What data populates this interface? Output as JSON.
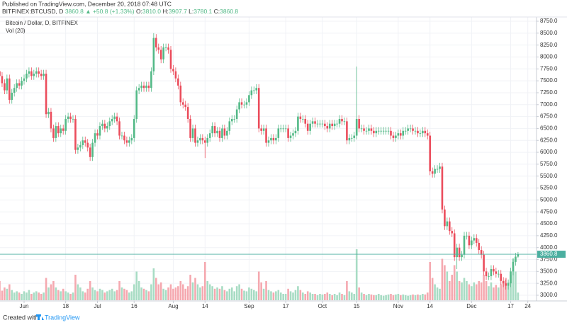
{
  "header": {
    "published": "Published on TradingView.com, December 20, 2018 07:48 UTC",
    "symbol": "BITFINEX:BTCUSD, D",
    "last": "3860.8",
    "change": "▲ +50.8 (+1.33%)",
    "ohlc": [
      {
        "label": "O:",
        "value": "3810.0"
      },
      {
        "label": "H:",
        "value": "3907.7"
      },
      {
        "label": "L:",
        "value": "3780.1"
      },
      {
        "label": "C:",
        "value": "3860.8"
      }
    ]
  },
  "chart_data": {
    "type": "candlestick",
    "legend": "Bitcoin / Dollar, D, BITFINEX",
    "volume_label": "Vol (20)",
    "up_color": "#53b987",
    "down_color": "#eb4d5c",
    "volume_up_color": "#a8dcc4",
    "volume_down_color": "#f5a9b0",
    "last_price_color": "#4bafa0",
    "grid": true,
    "ylim": [
      3000,
      8750
    ],
    "yticks": [
      {
        "value": 3000,
        "label": "3000.0"
      },
      {
        "value": 3250,
        "label": "3250.0"
      },
      {
        "value": 3500,
        "label": "3500.0"
      },
      {
        "value": 3750,
        "label": "3750.0"
      },
      {
        "value": 4000,
        "label": "4000.0"
      },
      {
        "value": 4250,
        "label": "4250.0"
      },
      {
        "value": 4500,
        "label": "4500.0"
      },
      {
        "value": 4750,
        "label": "4750.0"
      },
      {
        "value": 5000,
        "label": "5000.0"
      },
      {
        "value": 5250,
        "label": "5250.0"
      },
      {
        "value": 5500,
        "label": "5500.0"
      },
      {
        "value": 5750,
        "label": "5750.0"
      },
      {
        "value": 6000,
        "label": "6000.0"
      },
      {
        "value": 6250,
        "label": "6250.0"
      },
      {
        "value": 6500,
        "label": "6500.0"
      },
      {
        "value": 6750,
        "label": "6750.0"
      },
      {
        "value": 7000,
        "label": "7000.0"
      },
      {
        "value": 7250,
        "label": "7250.0"
      },
      {
        "value": 7500,
        "label": "7500.0"
      },
      {
        "value": 7750,
        "label": "7750.0"
      },
      {
        "value": 8000,
        "label": "8000.0"
      },
      {
        "value": 8250,
        "label": "8250.0"
      },
      {
        "value": 8500,
        "label": "8500.0"
      },
      {
        "value": 8750,
        "label": "8750.0"
      }
    ],
    "xticks": [
      {
        "value": 10,
        "label": "Jun"
      },
      {
        "value": 27,
        "label": "18"
      },
      {
        "value": 40,
        "label": "Jul"
      },
      {
        "value": 55,
        "label": "16"
      },
      {
        "value": 71,
        "label": "Aug"
      },
      {
        "value": 84,
        "label": "14"
      },
      {
        "value": 102,
        "label": "Sep"
      },
      {
        "value": 117,
        "label": "17"
      },
      {
        "value": 132,
        "label": "Oct"
      },
      {
        "value": 146,
        "label": "15"
      },
      {
        "value": 163,
        "label": "Nov"
      },
      {
        "value": 176,
        "label": "14"
      },
      {
        "value": 193,
        "label": "Dec"
      },
      {
        "value": 209,
        "label": "17"
      },
      {
        "value": 216,
        "label": "24"
      }
    ],
    "volume_lim": [
      0,
      100
    ],
    "open": [
      7700,
      7600,
      7450,
      7300,
      7550,
      7100,
      7250,
      7350,
      7450,
      7400,
      7500,
      7550,
      7650,
      7700,
      7600,
      7650,
      7700,
      7650,
      7600,
      7650,
      6800,
      6850,
      6500,
      6300,
      6550,
      6400,
      6500,
      6450,
      6700,
      6750,
      6700,
      6700,
      6050,
      6100,
      6150,
      6250,
      6200,
      6100,
      5900,
      6200,
      6400,
      6350,
      6550,
      6600,
      6500,
      6550,
      6650,
      6700,
      6750,
      6650,
      6350,
      6350,
      6250,
      6200,
      6250,
      6300,
      6700,
      7300,
      7350,
      7400,
      7350,
      7400,
      7350,
      7700,
      8400,
      8200,
      8150,
      7950,
      8200,
      8200,
      8150,
      7750,
      7700,
      7550,
      7400,
      7050,
      7000,
      6950,
      6700,
      6300,
      6500,
      6200,
      6250,
      6300,
      6250,
      6200,
      6300,
      6400,
      6550,
      6400,
      6450,
      6300,
      6500,
      6350,
      6450,
      6650,
      6700,
      6700,
      6900,
      7050,
      7000,
      7000,
      7050,
      7200,
      7300,
      7300,
      7350,
      6500,
      6450,
      6500,
      6200,
      6250,
      6300,
      6250,
      6300,
      6500,
      6500,
      6500,
      6500,
      6300,
      6350,
      6400,
      6450,
      6750,
      6700,
      6700,
      6600,
      6450,
      6600,
      6650,
      6600,
      6600,
      6600,
      6600,
      6550,
      6500,
      6600,
      6550,
      6600,
      6600,
      6700,
      6650,
      6650,
      6250,
      6300,
      6300,
      6350,
      6700,
      6500,
      6500,
      6450,
      6450,
      6500,
      6450,
      6400,
      6450,
      6450,
      6450,
      6450,
      6450,
      6450,
      6350,
      6300,
      6350,
      6400,
      6350,
      6450,
      6450,
      6500,
      6500,
      6450,
      6450,
      6400,
      6400,
      6450,
      6400,
      6350,
      5600,
      5550,
      5650,
      5650,
      5700,
      4800,
      4450,
      4550,
      4350,
      4300,
      3800,
      4000,
      3800,
      3850,
      4250,
      4250,
      4050,
      4150,
      4200,
      4100,
      3950,
      3850,
      3500,
      3400,
      3400,
      3550,
      3500,
      3450,
      3450,
      3300,
      3250,
      3200,
      3250,
      3500,
      3700,
      3810
    ],
    "high": [
      7780,
      7680,
      7530,
      7630,
      7630,
      7330,
      7430,
      7530,
      7530,
      7580,
      7630,
      7730,
      7780,
      7780,
      7730,
      7780,
      7780,
      7730,
      7730,
      7730,
      6930,
      6930,
      6580,
      6630,
      6630,
      6580,
      6580,
      6780,
      6830,
      6830,
      6780,
      6780,
      6180,
      6230,
      6330,
      6330,
      6280,
      6180,
      6280,
      6480,
      6480,
      6630,
      6680,
      6680,
      6630,
      6730,
      6780,
      6830,
      6830,
      6730,
      6430,
      6430,
      6330,
      6330,
      6380,
      6780,
      7380,
      7430,
      7480,
      7480,
      7480,
      7480,
      7780,
      8500,
      8480,
      8280,
      8230,
      8280,
      8280,
      8280,
      8230,
      7830,
      7780,
      7630,
      7480,
      7130,
      7080,
      7030,
      6780,
      6580,
      6580,
      6330,
      6380,
      6380,
      6330,
      6380,
      6480,
      6630,
      6630,
      6530,
      6530,
      6580,
      6580,
      6530,
      6730,
      6780,
      6780,
      6980,
      7130,
      7130,
      7080,
      7130,
      7280,
      7380,
      7380,
      7430,
      7430,
      6580,
      6580,
      6580,
      6330,
      6380,
      6380,
      6380,
      6580,
      6580,
      6580,
      6580,
      6580,
      6430,
      6480,
      6530,
      6830,
      6830,
      6780,
      6780,
      6680,
      6680,
      6730,
      6730,
      6680,
      6680,
      6680,
      6680,
      6630,
      6680,
      6680,
      6680,
      6680,
      6780,
      6780,
      6730,
      6730,
      6380,
      6380,
      6430,
      7800,
      6780,
      6580,
      6580,
      6530,
      6580,
      6580,
      6530,
      6530,
      6530,
      6530,
      6530,
      6530,
      6530,
      6530,
      6430,
      6430,
      6480,
      6480,
      6530,
      6530,
      6580,
      6580,
      6580,
      6530,
      6530,
      6480,
      6530,
      6530,
      6480,
      6430,
      5680,
      5730,
      5730,
      5780,
      5780,
      4880,
      4630,
      4630,
      4430,
      4380,
      4080,
      4080,
      3930,
      4330,
      4330,
      4330,
      4230,
      4280,
      4280,
      4180,
      4030,
      3930,
      3580,
      3480,
      3630,
      3630,
      3580,
      3530,
      3530,
      3380,
      3330,
      3330,
      3580,
      3780,
      3890,
      3907.7
    ],
    "low": [
      7520,
      7370,
      7220,
      7220,
      7020,
      7020,
      7170,
      7270,
      7320,
      7320,
      7420,
      7470,
      7570,
      7520,
      7520,
      7570,
      7570,
      7520,
      7520,
      6720,
      6720,
      6420,
      6220,
      6220,
      6320,
      6320,
      6370,
      6370,
      6620,
      6620,
      6620,
      5970,
      5970,
      6020,
      6070,
      6120,
      6020,
      5820,
      5820,
      6120,
      6270,
      6270,
      6470,
      6420,
      6420,
      6470,
      6570,
      6620,
      6570,
      6270,
      6270,
      6170,
      6120,
      6120,
      6170,
      6220,
      6620,
      7220,
      7270,
      7270,
      7270,
      7270,
      7270,
      7620,
      8120,
      8070,
      7870,
      7870,
      8120,
      8070,
      7670,
      7620,
      7470,
      7320,
      6970,
      6920,
      6870,
      6620,
      6220,
      6220,
      6120,
      6120,
      6170,
      6170,
      5880,
      6120,
      6220,
      6320,
      6320,
      6320,
      6220,
      6220,
      6270,
      6270,
      6370,
      6570,
      6620,
      6620,
      6820,
      6920,
      6920,
      6920,
      6970,
      7120,
      7220,
      7220,
      6420,
      6370,
      6370,
      6120,
      6120,
      6170,
      6170,
      6170,
      6220,
      6420,
      6420,
      6420,
      6220,
      6220,
      6270,
      6320,
      6370,
      6620,
      6620,
      6520,
      6370,
      6370,
      6520,
      6520,
      6520,
      6520,
      6520,
      6470,
      6420,
      6420,
      6470,
      6470,
      6520,
      6520,
      6570,
      6570,
      6170,
      6170,
      6220,
      6220,
      6270,
      6420,
      6420,
      6370,
      6370,
      6370,
      6370,
      6320,
      6320,
      6370,
      6370,
      6370,
      6370,
      6370,
      6270,
      6220,
      6220,
      6270,
      6270,
      6270,
      6370,
      6370,
      6420,
      6370,
      6370,
      6320,
      6320,
      6320,
      6320,
      6270,
      5520,
      5470,
      5470,
      5570,
      5570,
      4720,
      4370,
      4370,
      4270,
      4220,
      3720,
      3550,
      3720,
      3720,
      3770,
      4170,
      3970,
      3970,
      4070,
      4020,
      3870,
      3770,
      3420,
      3320,
      3320,
      3320,
      3420,
      3370,
      3370,
      3220,
      3170,
      3120,
      3120,
      3170,
      3420,
      3620,
      3780.1
    ],
    "close": [
      7600,
      7450,
      7300,
      7550,
      7100,
      7250,
      7350,
      7450,
      7400,
      7500,
      7550,
      7650,
      7700,
      7600,
      7650,
      7700,
      7650,
      7600,
      7650,
      6800,
      6850,
      6500,
      6300,
      6550,
      6400,
      6500,
      6450,
      6700,
      6750,
      6700,
      6700,
      6050,
      6100,
      6150,
      6250,
      6200,
      6100,
      5900,
      6200,
      6400,
      6350,
      6550,
      6600,
      6500,
      6550,
      6650,
      6700,
      6750,
      6650,
      6350,
      6350,
      6250,
      6200,
      6250,
      6300,
      6700,
      7300,
      7350,
      7400,
      7350,
      7400,
      7350,
      7700,
      8400,
      8200,
      8150,
      7950,
      8200,
      8200,
      8150,
      7750,
      7700,
      7550,
      7400,
      7050,
      7000,
      6950,
      6700,
      6300,
      6500,
      6200,
      6250,
      6300,
      6250,
      6200,
      6300,
      6400,
      6550,
      6400,
      6450,
      6300,
      6500,
      6350,
      6450,
      6650,
      6700,
      6700,
      6900,
      7050,
      7000,
      7000,
      7050,
      7200,
      7300,
      7300,
      7350,
      6500,
      6450,
      6500,
      6200,
      6250,
      6300,
      6250,
      6300,
      6500,
      6500,
      6500,
      6500,
      6300,
      6350,
      6400,
      6450,
      6750,
      6700,
      6700,
      6600,
      6450,
      6600,
      6650,
      6600,
      6600,
      6600,
      6600,
      6550,
      6500,
      6600,
      6550,
      6600,
      6600,
      6700,
      6650,
      6650,
      6250,
      6300,
      6300,
      6350,
      6700,
      6500,
      6500,
      6450,
      6450,
      6500,
      6450,
      6400,
      6450,
      6450,
      6450,
      6450,
      6450,
      6450,
      6350,
      6300,
      6350,
      6400,
      6350,
      6450,
      6450,
      6500,
      6500,
      6450,
      6450,
      6400,
      6400,
      6450,
      6400,
      6350,
      5600,
      5550,
      5650,
      5650,
      5700,
      4800,
      4450,
      4550,
      4350,
      4300,
      3800,
      4000,
      3800,
      3850,
      4250,
      4250,
      4050,
      4150,
      4200,
      4100,
      3950,
      3850,
      3500,
      3400,
      3400,
      3550,
      3500,
      3450,
      3450,
      3300,
      3250,
      3200,
      3250,
      3500,
      3700,
      3810,
      3860.8
    ],
    "volume": [
      30,
      15,
      20,
      18,
      25,
      16,
      12,
      14,
      12,
      10,
      14,
      12,
      16,
      10,
      12,
      14,
      12,
      10,
      12,
      35,
      20,
      25,
      30,
      20,
      16,
      14,
      18,
      14,
      12,
      10,
      12,
      40,
      25,
      20,
      14,
      12,
      18,
      30,
      20,
      16,
      14,
      18,
      16,
      12,
      14,
      16,
      18,
      14,
      16,
      30,
      20,
      18,
      16,
      12,
      14,
      25,
      45,
      30,
      20,
      18,
      16,
      14,
      25,
      50,
      35,
      25,
      28,
      18,
      16,
      20,
      25,
      18,
      20,
      22,
      30,
      25,
      18,
      22,
      40,
      28,
      35,
      25,
      20,
      22,
      60,
      30,
      25,
      22,
      18,
      20,
      18,
      22,
      16,
      14,
      18,
      20,
      14,
      22,
      25,
      18,
      15,
      14,
      20,
      18,
      16,
      14,
      45,
      28,
      18,
      30,
      16,
      14,
      12,
      14,
      16,
      12,
      10,
      10,
      18,
      14,
      12,
      16,
      22,
      16,
      12,
      10,
      14,
      12,
      10,
      10,
      8,
      10,
      9,
      10,
      12,
      10,
      8,
      10,
      8,
      12,
      10,
      8,
      30,
      14,
      12,
      10,
      80,
      20,
      12,
      10,
      8,
      10,
      9,
      8,
      8,
      10,
      8,
      7,
      8,
      9,
      10,
      8,
      9,
      10,
      8,
      9,
      8,
      7,
      8,
      9,
      8,
      9,
      8,
      10,
      9,
      12,
      60,
      35,
      25,
      20,
      18,
      65,
      55,
      45,
      30,
      40,
      55,
      45,
      30,
      28,
      35,
      30,
      25,
      22,
      28,
      25,
      30,
      28,
      40,
      30,
      22,
      28,
      20,
      24,
      20,
      25,
      30,
      35,
      28,
      40,
      65,
      45,
      12
    ]
  },
  "footer": {
    "created": "Created with",
    "brand": "TradingView"
  }
}
